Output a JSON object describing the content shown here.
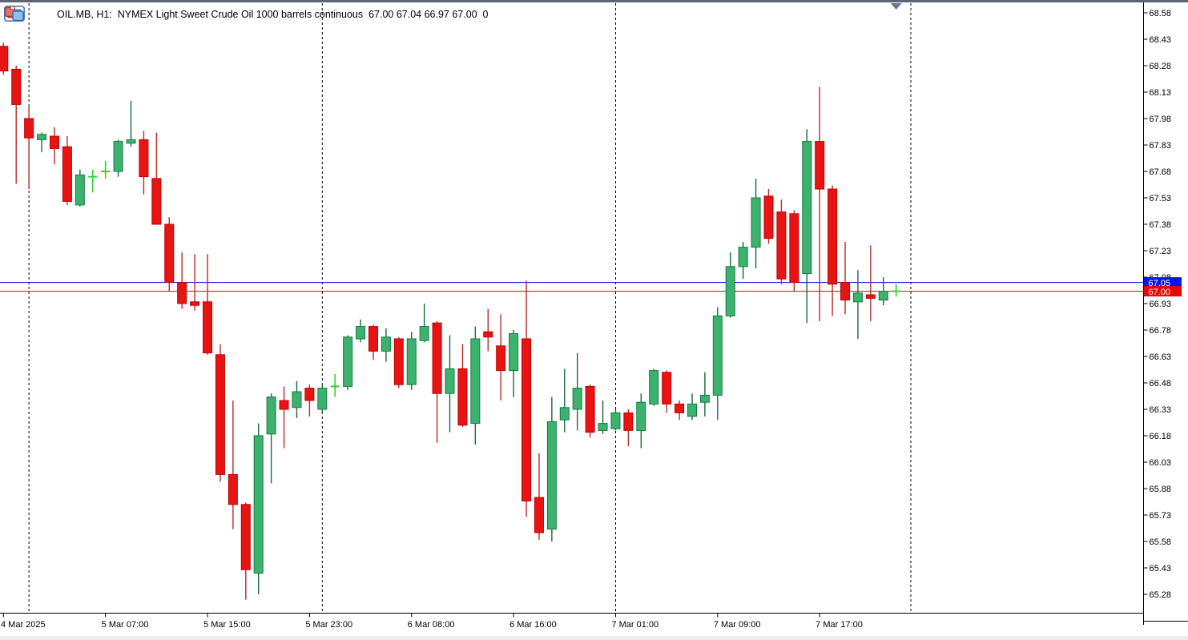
{
  "header": {
    "title": "OIL.MB, H1:  NYMEX Light Sweet Crude Oil 1000 barrels continuous  67.00 67.04 66.97 67.00  0",
    "symbol": "OIL.MB",
    "period": "H1",
    "description": "NYMEX Light Sweet Crude Oil 1000 barrels continuous",
    "quote": {
      "open": "67.00",
      "high": "67.04",
      "low": "66.97",
      "close": "67.00",
      "extra": "0"
    }
  },
  "price_axis": {
    "labels": [
      "68.58",
      "68.43",
      "68.28",
      "68.13",
      "67.98",
      "67.83",
      "67.68",
      "67.53",
      "67.38",
      "67.23",
      "67.08",
      "66.93",
      "66.78",
      "66.63",
      "66.48",
      "66.33",
      "66.18",
      "66.03",
      "65.88",
      "65.73",
      "65.58",
      "65.43",
      "65.28"
    ],
    "ask_badge_text": "67.05",
    "bid_badge_text": "67.00"
  },
  "time_axis": {
    "ticks": [
      {
        "candle_index": 0,
        "label": "4 Mar 2025"
      },
      {
        "candle_index": 8,
        "label": "5 Mar 07:00"
      },
      {
        "candle_index": 16,
        "label": "5 Mar 15:00"
      },
      {
        "candle_index": 24,
        "label": "5 Mar 23:00"
      },
      {
        "candle_index": 32,
        "label": "6 Mar 08:00"
      },
      {
        "candle_index": 40,
        "label": "6 Mar 16:00"
      },
      {
        "candle_index": 48,
        "label": "7 Mar 01:00"
      },
      {
        "candle_index": 56,
        "label": "7 Mar 09:00"
      },
      {
        "candle_index": 64,
        "label": "7 Mar 17:00"
      }
    ]
  },
  "price_lines": {
    "ask": {
      "value": 67.05,
      "color": "#0000e8"
    },
    "bid": {
      "value": 67.0,
      "color": "#e80000"
    }
  },
  "day_separators": {
    "candle_positions": [
      2,
      25,
      48,
      71.15
    ]
  },
  "marker": {
    "shape": "down-triangle",
    "color": "#66788f",
    "at_candle_index": 70
  },
  "colors": {
    "bull_fill": "#3cb26e",
    "bull_border": "#157a42",
    "bull_wick": "#166b3a",
    "bear_fill": "#e81414",
    "bear_border": "#bf0000",
    "bear_wick": "#bb2a2a",
    "doji": "#2fd32f",
    "ask_badge_bg": "#0a16e8",
    "bid_badge_bg": "#ee0505",
    "badge_text": "#ffffff",
    "axis_line": "#000000",
    "axis_text": "#000000",
    "separator": "#000000"
  },
  "chart_data": {
    "type": "candlestick",
    "title": "OIL.MB H1 NYMEX Light Sweet Crude Oil 1000 barrels continuous",
    "ylim": [
      65.2,
      68.62
    ],
    "price_step": 0.15,
    "legend_position": "none",
    "grid": "vertical-day-separators-only",
    "columns": [
      "time",
      "open",
      "high",
      "low",
      "close"
    ],
    "candles": [
      [
        "4 Mar 22:00",
        68.39,
        68.41,
        68.23,
        68.25
      ],
      [
        "4 Mar 23:00",
        68.26,
        68.28,
        67.61,
        68.06
      ],
      [
        "5 Mar 01:00",
        67.98,
        68.05,
        67.58,
        67.87
      ],
      [
        "5 Mar 02:00",
        67.86,
        67.9,
        67.79,
        67.89
      ],
      [
        "5 Mar 03:00",
        67.88,
        67.93,
        67.72,
        67.81
      ],
      [
        "5 Mar 04:00",
        67.82,
        67.88,
        67.49,
        67.51
      ],
      [
        "5 Mar 05:00",
        67.49,
        67.69,
        67.48,
        67.66
      ],
      [
        "5 Mar 06:00",
        67.65,
        67.69,
        67.56,
        67.65
      ],
      [
        "5 Mar 07:00",
        67.68,
        67.74,
        67.64,
        67.68
      ],
      [
        "5 Mar 08:00",
        67.68,
        67.86,
        67.65,
        67.85
      ],
      [
        "5 Mar 09:00",
        67.84,
        68.08,
        67.82,
        67.86
      ],
      [
        "5 Mar 10:00",
        67.86,
        67.91,
        67.55,
        67.65
      ],
      [
        "5 Mar 11:00",
        67.64,
        67.9,
        67.38,
        67.38
      ],
      [
        "5 Mar 12:00",
        67.38,
        67.42,
        67.0,
        67.05
      ],
      [
        "5 Mar 13:00",
        67.05,
        67.22,
        66.9,
        66.93
      ],
      [
        "5 Mar 14:00",
        66.94,
        67.21,
        66.89,
        66.92
      ],
      [
        "5 Mar 15:00",
        66.94,
        67.21,
        66.64,
        66.65
      ],
      [
        "5 Mar 16:00",
        66.64,
        66.7,
        65.92,
        65.96
      ],
      [
        "5 Mar 17:00",
        65.96,
        66.38,
        65.65,
        65.79
      ],
      [
        "5 Mar 18:00",
        65.79,
        65.8,
        65.25,
        65.42
      ],
      [
        "5 Mar 19:00",
        65.4,
        66.25,
        65.28,
        66.18
      ],
      [
        "5 Mar 20:00",
        66.19,
        66.42,
        65.91,
        66.4
      ],
      [
        "5 Mar 21:00",
        66.38,
        66.46,
        66.11,
        66.33
      ],
      [
        "5 Mar 22:00",
        66.34,
        66.49,
        66.28,
        66.43
      ],
      [
        "5 Mar 23:00",
        66.45,
        66.47,
        66.29,
        66.38
      ],
      [
        "6 Mar 01:00",
        66.33,
        66.47,
        66.31,
        66.45
      ],
      [
        "6 Mar 02:00",
        66.46,
        66.53,
        66.4,
        66.46
      ],
      [
        "6 Mar 03:00",
        66.46,
        66.75,
        66.44,
        66.74
      ],
      [
        "6 Mar 04:00",
        66.73,
        66.84,
        66.71,
        66.8
      ],
      [
        "6 Mar 05:00",
        66.8,
        66.81,
        66.61,
        66.66
      ],
      [
        "6 Mar 06:00",
        66.66,
        66.79,
        66.6,
        66.74
      ],
      [
        "6 Mar 07:00",
        66.73,
        66.74,
        66.45,
        66.47
      ],
      [
        "6 Mar 08:00",
        66.47,
        66.77,
        66.44,
        66.73
      ],
      [
        "6 Mar 09:00",
        66.72,
        66.93,
        66.71,
        66.8
      ],
      [
        "6 Mar 10:00",
        66.82,
        66.83,
        66.14,
        66.42
      ],
      [
        "6 Mar 11:00",
        66.42,
        66.75,
        66.2,
        66.56
      ],
      [
        "6 Mar 12:00",
        66.56,
        66.7,
        66.23,
        66.24
      ],
      [
        "6 Mar 13:00",
        66.25,
        66.8,
        66.13,
        66.73
      ],
      [
        "6 Mar 14:00",
        66.77,
        66.9,
        66.66,
        66.74
      ],
      [
        "6 Mar 15:00",
        66.69,
        66.87,
        66.38,
        66.55
      ],
      [
        "6 Mar 16:00",
        66.55,
        66.78,
        66.4,
        66.76
      ],
      [
        "6 Mar 17:00",
        66.73,
        67.06,
        65.72,
        65.81
      ],
      [
        "6 Mar 18:00",
        65.83,
        66.08,
        65.59,
        65.63
      ],
      [
        "6 Mar 19:00",
        65.65,
        66.4,
        65.58,
        66.26
      ],
      [
        "6 Mar 20:00",
        66.27,
        66.56,
        66.2,
        66.34
      ],
      [
        "6 Mar 21:00",
        66.33,
        66.65,
        66.21,
        66.45
      ],
      [
        "6 Mar 22:00",
        66.46,
        66.47,
        66.17,
        66.2
      ],
      [
        "6 Mar 23:00",
        66.21,
        66.38,
        66.19,
        66.25
      ],
      [
        "7 Mar 01:00",
        66.22,
        66.33,
        66.21,
        66.31
      ],
      [
        "7 Mar 02:00",
        66.31,
        66.33,
        66.12,
        66.21
      ],
      [
        "7 Mar 03:00",
        66.21,
        66.42,
        66.11,
        66.37
      ],
      [
        "7 Mar 04:00",
        66.36,
        66.56,
        66.35,
        66.55
      ],
      [
        "7 Mar 05:00",
        66.54,
        66.55,
        66.31,
        66.36
      ],
      [
        "7 Mar 06:00",
        66.36,
        66.38,
        66.27,
        66.31
      ],
      [
        "7 Mar 07:00",
        66.29,
        66.42,
        66.27,
        66.36
      ],
      [
        "7 Mar 08:00",
        66.37,
        66.54,
        66.29,
        66.41
      ],
      [
        "7 Mar 09:00",
        66.41,
        66.91,
        66.27,
        66.86
      ],
      [
        "7 Mar 10:00",
        66.86,
        67.22,
        66.85,
        67.14
      ],
      [
        "7 Mar 11:00",
        67.14,
        67.28,
        67.07,
        67.25
      ],
      [
        "7 Mar 12:00",
        67.25,
        67.64,
        67.13,
        67.53
      ],
      [
        "7 Mar 13:00",
        67.54,
        67.58,
        67.27,
        67.3
      ],
      [
        "7 Mar 14:00",
        67.45,
        67.52,
        67.04,
        67.07
      ],
      [
        "7 Mar 15:00",
        67.44,
        67.46,
        67.0,
        67.05
      ],
      [
        "7 Mar 16:00",
        67.1,
        67.92,
        66.82,
        67.85
      ],
      [
        "7 Mar 17:00",
        67.85,
        68.16,
        66.83,
        67.58
      ],
      [
        "7 Mar 18:00",
        67.58,
        67.6,
        66.86,
        67.04
      ],
      [
        "7 Mar 19:00",
        67.05,
        67.28,
        66.87,
        66.95
      ],
      [
        "7 Mar 20:00",
        66.94,
        67.12,
        66.73,
        66.99
      ],
      [
        "7 Mar 21:00",
        66.98,
        67.26,
        66.83,
        66.96
      ],
      [
        "7 Mar 22:00",
        66.95,
        67.08,
        66.92,
        67.0
      ],
      [
        "7 Mar 23:00",
        67.0,
        67.04,
        66.97,
        67.0
      ]
    ]
  }
}
